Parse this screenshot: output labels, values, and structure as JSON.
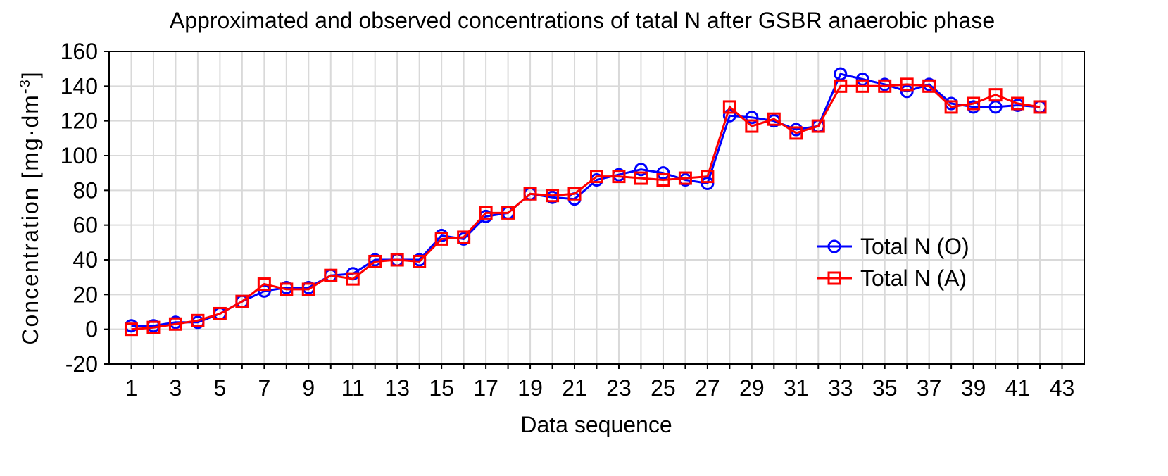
{
  "chart_data": {
    "type": "line",
    "title": "Approximated and observed concentrations of tatal N after GSBR anaerobic phase",
    "xlabel": "Data sequence",
    "ylabel": "Concentration [mg·dm",
    "ylabel_superscript": "-3",
    "ylabel_close": "]",
    "xlim": [
      0,
      44
    ],
    "ylim": [
      -20,
      160
    ],
    "xticks": [
      1,
      3,
      5,
      7,
      9,
      11,
      13,
      15,
      17,
      19,
      21,
      23,
      25,
      27,
      29,
      31,
      33,
      35,
      37,
      39,
      41,
      43
    ],
    "yticks": [
      -20,
      0,
      20,
      40,
      60,
      80,
      100,
      120,
      140,
      160
    ],
    "grid": true,
    "legend_position": "right",
    "x": [
      1,
      2,
      3,
      4,
      5,
      6,
      7,
      8,
      9,
      10,
      11,
      12,
      13,
      14,
      15,
      16,
      17,
      18,
      19,
      20,
      21,
      22,
      23,
      24,
      25,
      26,
      27,
      28,
      29,
      30,
      31,
      32,
      33,
      34,
      35,
      36,
      37,
      38,
      39,
      40,
      41,
      42
    ],
    "series": [
      {
        "name": "Total N (O)",
        "color": "#0000ff",
        "marker": "circle",
        "values": [
          2,
          2,
          4,
          4,
          9,
          16,
          22,
          24,
          24,
          31,
          32,
          40,
          40,
          40,
          54,
          52,
          65,
          67,
          78,
          76,
          75,
          86,
          89,
          92,
          90,
          86,
          84,
          123,
          122,
          120,
          115,
          117,
          147,
          144,
          141,
          137,
          141,
          130,
          128,
          128,
          129,
          128
        ]
      },
      {
        "name": "Total N (A)",
        "color": "#ff0000",
        "marker": "square",
        "values": [
          0,
          1,
          3,
          5,
          9,
          16,
          26,
          23,
          23,
          31,
          29,
          39,
          40,
          39,
          52,
          53,
          67,
          67,
          78,
          77,
          78,
          88,
          88,
          87,
          86,
          87,
          88,
          128,
          117,
          121,
          113,
          117,
          140,
          140,
          140,
          141,
          140,
          128,
          130,
          135,
          130,
          128
        ]
      }
    ]
  }
}
